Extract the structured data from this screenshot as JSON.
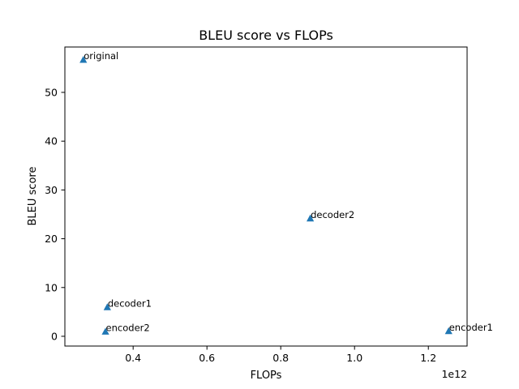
{
  "chart_data": {
    "type": "scatter",
    "title": "BLEU score vs FLOPs",
    "xlabel": "FLOPs",
    "ylabel": "BLEU score",
    "x_offset_label": "1e12",
    "x_scale_exponent": 12,
    "xlim": [
      0.215,
      1.305
    ],
    "ylim": [
      -2.0,
      59.3
    ],
    "xticks": [
      0.4,
      0.6,
      0.8,
      1.0,
      1.2
    ],
    "xtick_labels": [
      "0.4",
      "0.6",
      "0.8",
      "1.0",
      "1.2"
    ],
    "yticks": [
      0,
      10,
      20,
      30,
      40,
      50
    ],
    "ytick_labels": [
      "0",
      "10",
      "20",
      "30",
      "40",
      "50"
    ],
    "grid": false,
    "marker": "triangle-up",
    "color": "#1f77b4",
    "points": [
      {
        "label": "original",
        "x": 0.265,
        "y": 56.7
      },
      {
        "label": "decoder2",
        "x": 0.88,
        "y": 24.2
      },
      {
        "label": "decoder1",
        "x": 0.33,
        "y": 6.0
      },
      {
        "label": "encoder2",
        "x": 0.325,
        "y": 1.0
      },
      {
        "label": "encoder1",
        "x": 1.255,
        "y": 1.1
      }
    ]
  }
}
